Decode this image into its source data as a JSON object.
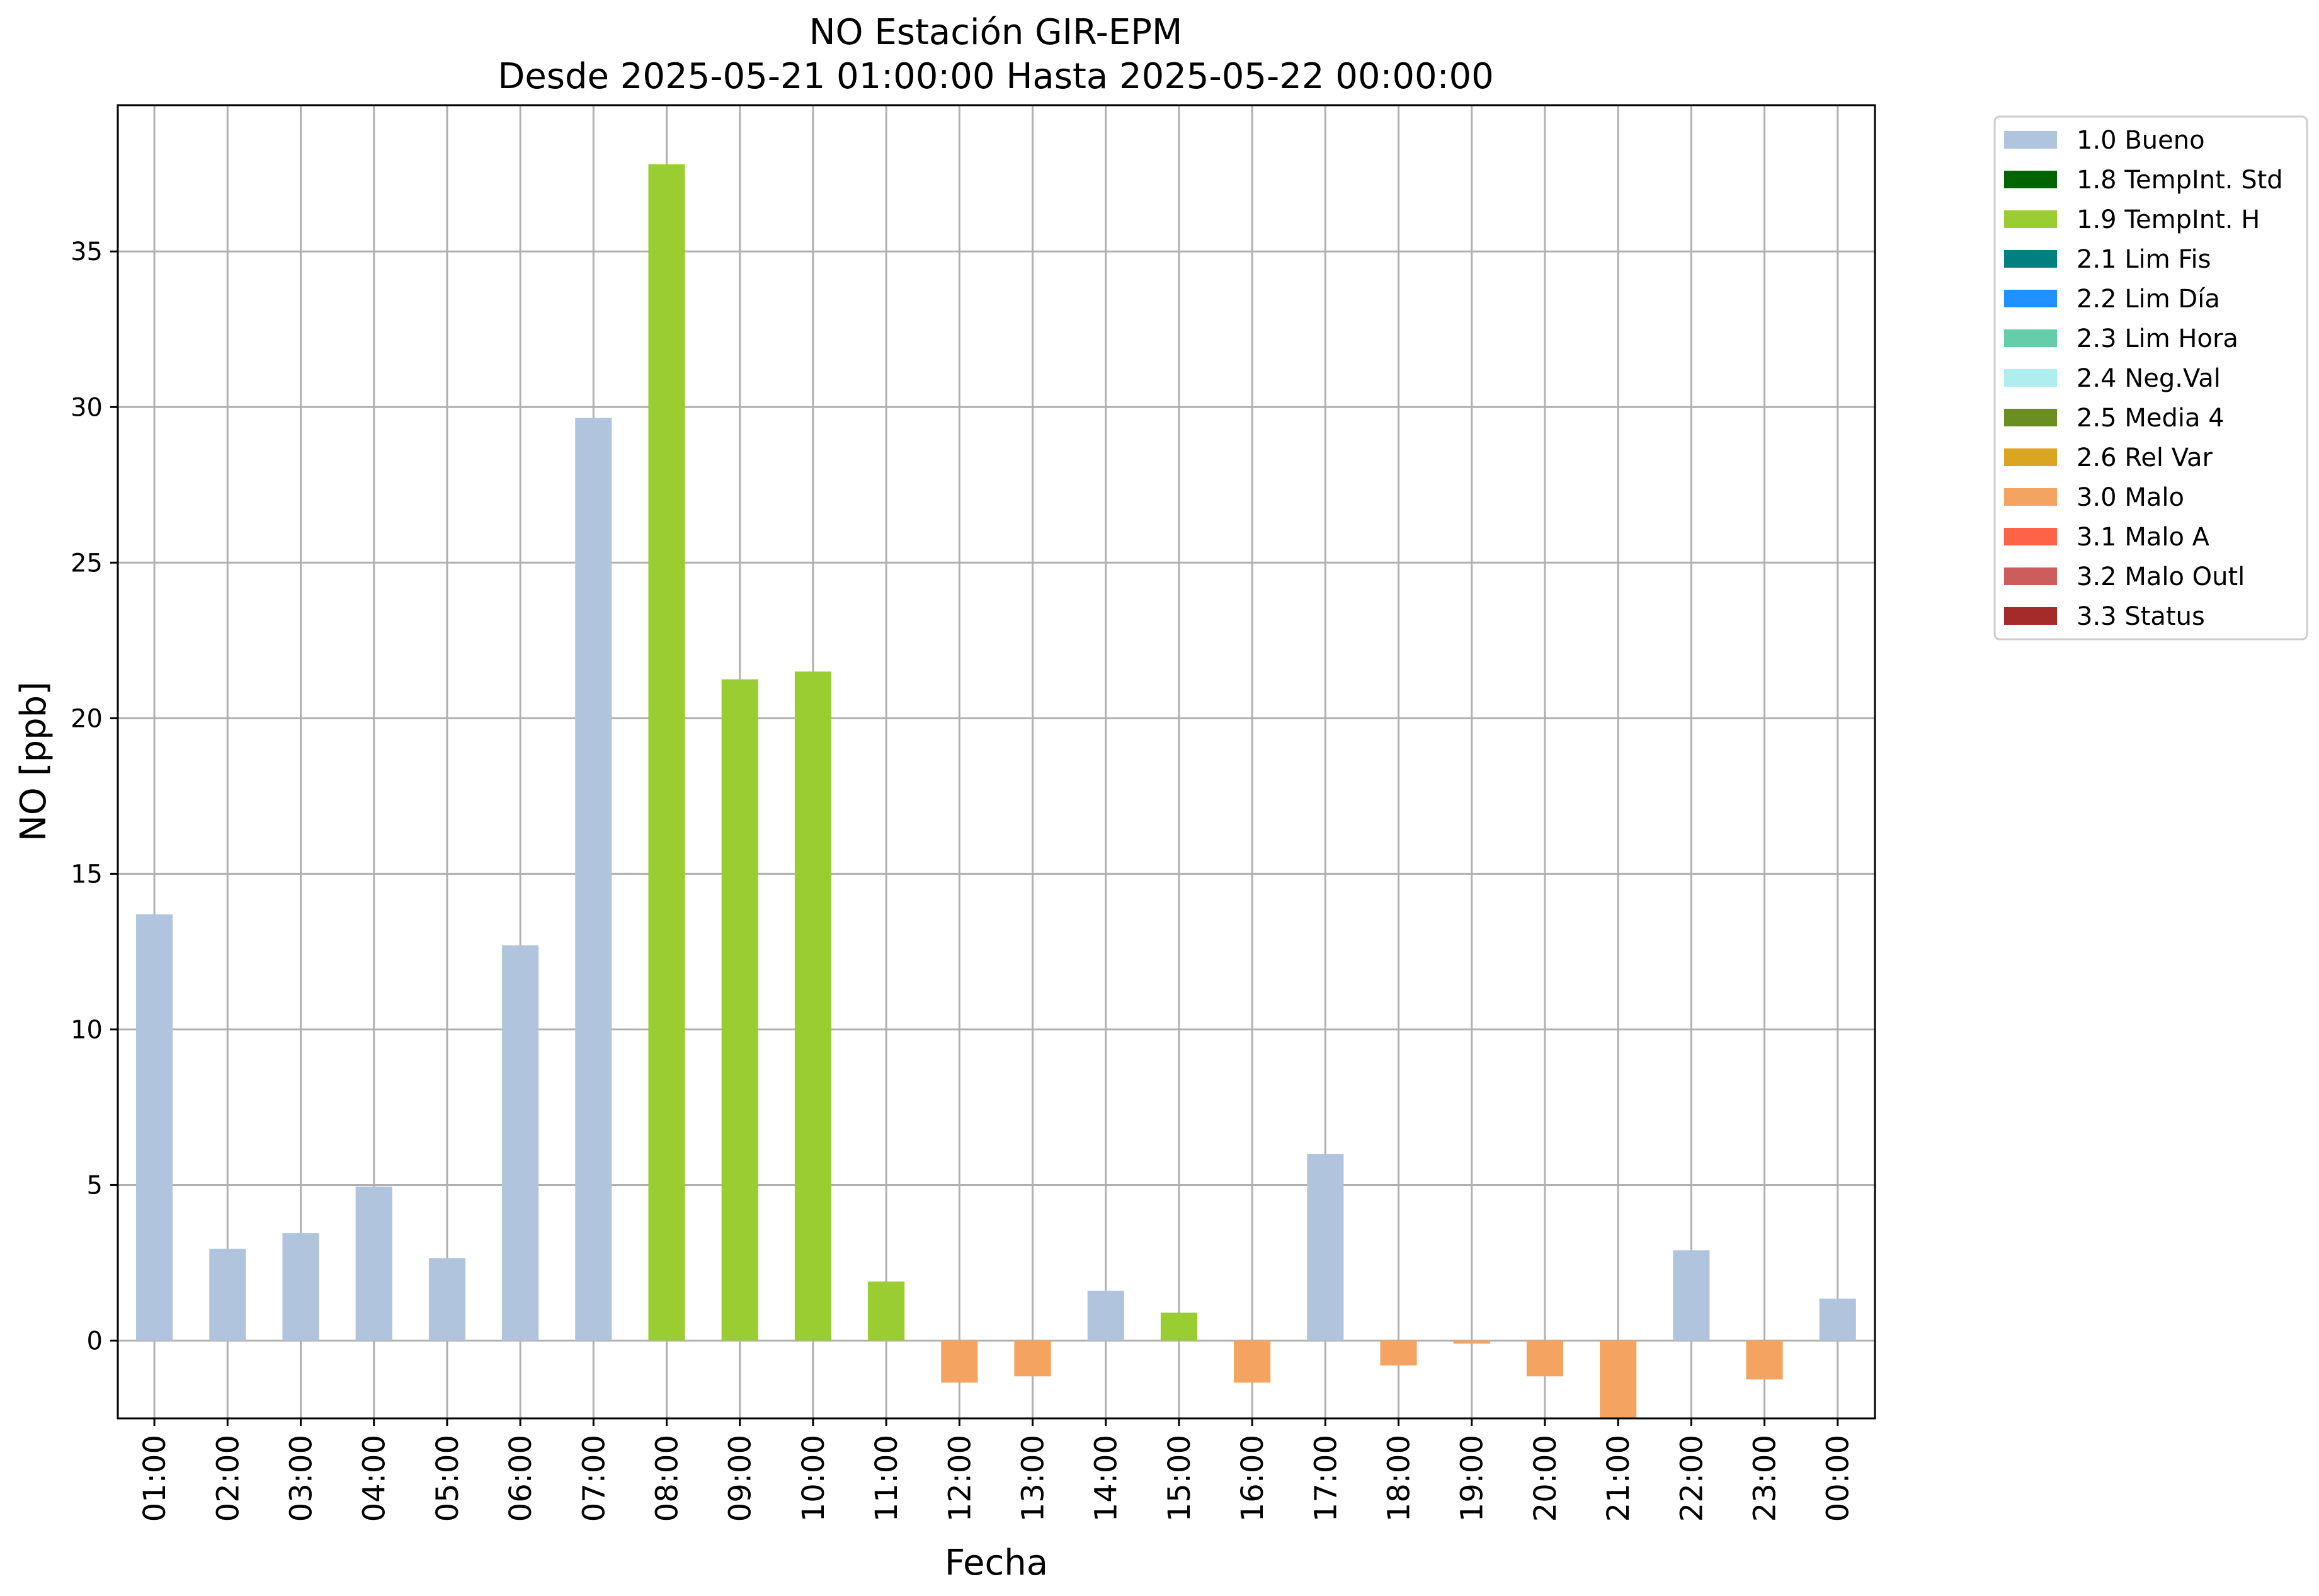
{
  "chart_data": {
    "type": "bar",
    "title": "NO Estación GIR-EPM",
    "subtitle": "Desde 2025-05-21 01:00:00 Hasta 2025-05-22 00:00:00",
    "xlabel": "Fecha",
    "ylabel": "NO [ppb]",
    "ylim": [
      -2.5,
      39.7
    ],
    "yticks": [
      0,
      5,
      10,
      15,
      20,
      25,
      30,
      35
    ],
    "grid": true,
    "legend_position": "outside-right-top",
    "categories": [
      "01:00",
      "02:00",
      "03:00",
      "04:00",
      "05:00",
      "06:00",
      "07:00",
      "08:00",
      "09:00",
      "10:00",
      "11:00",
      "12:00",
      "13:00",
      "14:00",
      "15:00",
      "16:00",
      "17:00",
      "18:00",
      "19:00",
      "20:00",
      "21:00",
      "22:00",
      "23:00",
      "00:00"
    ],
    "values": [
      13.7,
      2.95,
      3.45,
      4.95,
      2.65,
      12.7,
      29.65,
      37.8,
      21.25,
      21.5,
      1.9,
      -1.35,
      -1.15,
      1.6,
      0.9,
      -1.35,
      6.0,
      -0.8,
      -0.1,
      -1.15,
      -2.5,
      2.9,
      -1.25,
      1.35
    ],
    "flags": [
      "1.0 Bueno",
      "1.0 Bueno",
      "1.0 Bueno",
      "1.0 Bueno",
      "1.0 Bueno",
      "1.0 Bueno",
      "1.0 Bueno",
      "1.9 TempInt. H",
      "1.9 TempInt. H",
      "1.9 TempInt. H",
      "1.9 TempInt. H",
      "3.0 Malo",
      "3.0 Malo",
      "1.0 Bueno",
      "1.9 TempInt. H",
      "3.0 Malo",
      "1.0 Bueno",
      "3.0 Malo",
      "3.0 Malo",
      "3.0 Malo",
      "3.0 Malo",
      "1.0 Bueno",
      "3.0 Malo",
      "1.0 Bueno"
    ],
    "legend": [
      {
        "name": "1.0 Bueno",
        "color": "#b0c4de"
      },
      {
        "name": "1.8 TempInt. Std",
        "color": "#006400"
      },
      {
        "name": "1.9 TempInt. H",
        "color": "#9acd32"
      },
      {
        "name": "2.1 Lim Fis",
        "color": "#008080"
      },
      {
        "name": "2.2 Lim Día",
        "color": "#1e90ff"
      },
      {
        "name": "2.3 Lim Hora",
        "color": "#66cdaa"
      },
      {
        "name": "2.4 Neg.Val",
        "color": "#afeeee"
      },
      {
        "name": "2.5 Media 4",
        "color": "#6b8e23"
      },
      {
        "name": "2.6 Rel Var",
        "color": "#daa520"
      },
      {
        "name": "3.0 Malo",
        "color": "#f4a460"
      },
      {
        "name": "3.1 Malo A",
        "color": "#ff6347"
      },
      {
        "name": "3.2 Malo Outl",
        "color": "#cd5c5c"
      },
      {
        "name": "3.3 Status",
        "color": "#a52a2a"
      }
    ]
  }
}
